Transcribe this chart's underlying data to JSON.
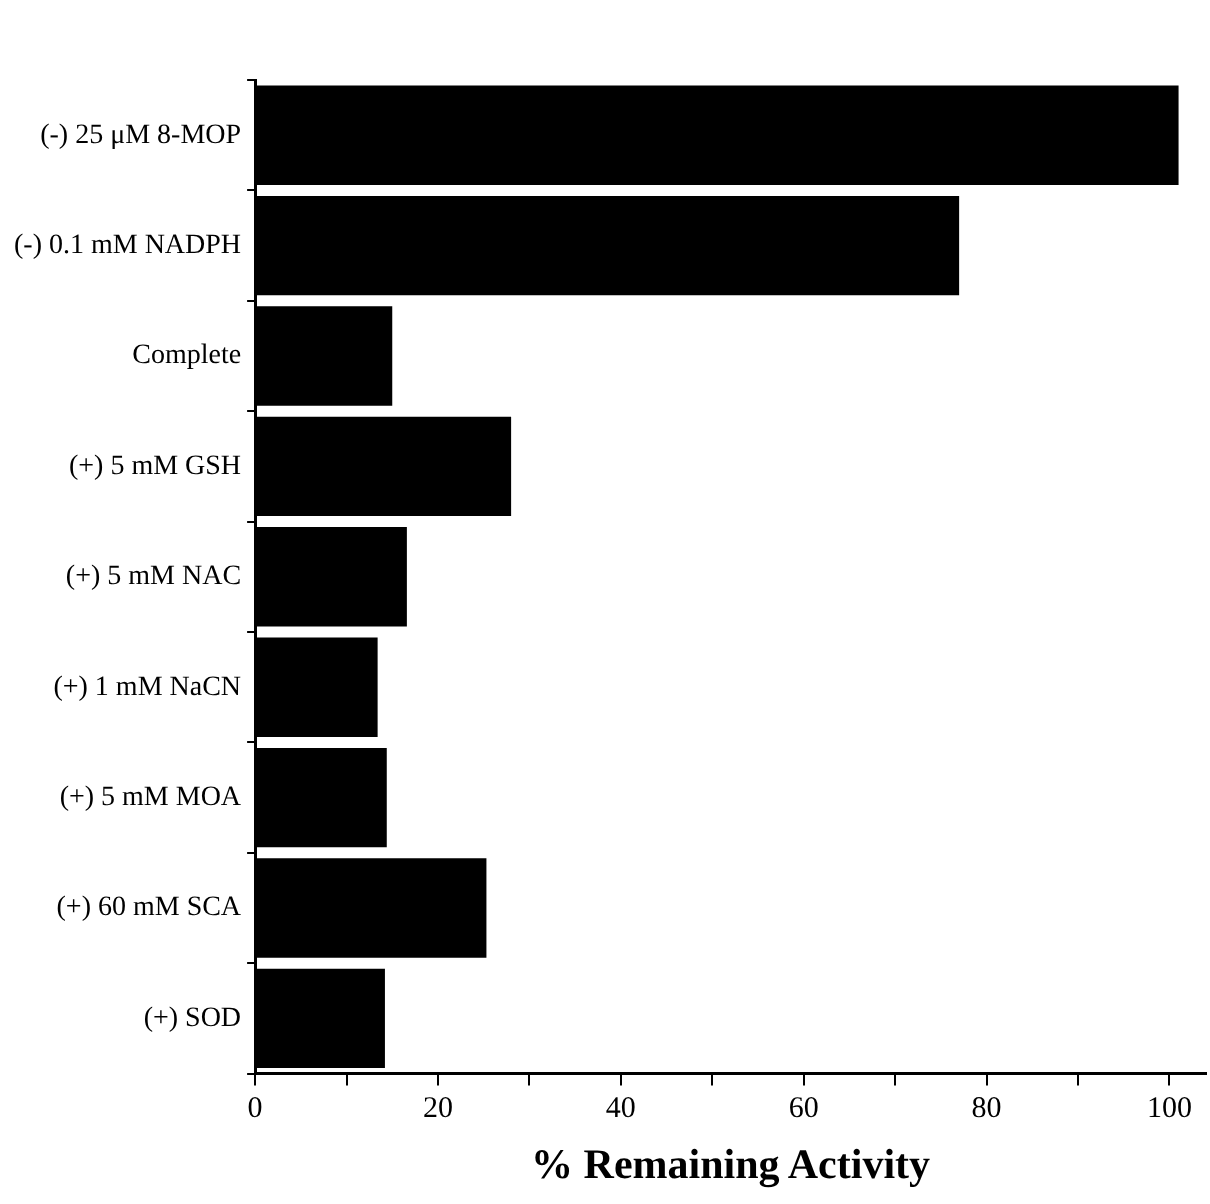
{
  "chart_data": {
    "type": "bar",
    "orientation": "horizontal",
    "xlabel": "% Remaining Activity",
    "categories": [
      "(-) 25 μM 8-MOP",
      "(-) 0.1 mM NADPH",
      "Complete",
      "(+) 5 mM GSH",
      "(+) 5 mM NAC",
      "(+) 1 mM NaCN",
      "(+) 5 mM MOA",
      "(+) 60 mM SCA",
      "(+) SOD"
    ],
    "values": [
      101,
      77,
      15,
      28,
      16.6,
      13.4,
      14.4,
      25.3,
      14.2
    ],
    "color": "#000000",
    "xlim": [
      0,
      104
    ],
    "xticks": [
      0,
      {
        "value": 10,
        "label": null
      },
      20,
      {
        "value": 30,
        "label": null
      },
      40,
      {
        "value": 50,
        "label": null
      },
      60,
      {
        "value": 70,
        "label": null
      },
      80,
      {
        "value": 90,
        "label": null
      },
      100
    ],
    "grid": false,
    "legend": false
  }
}
